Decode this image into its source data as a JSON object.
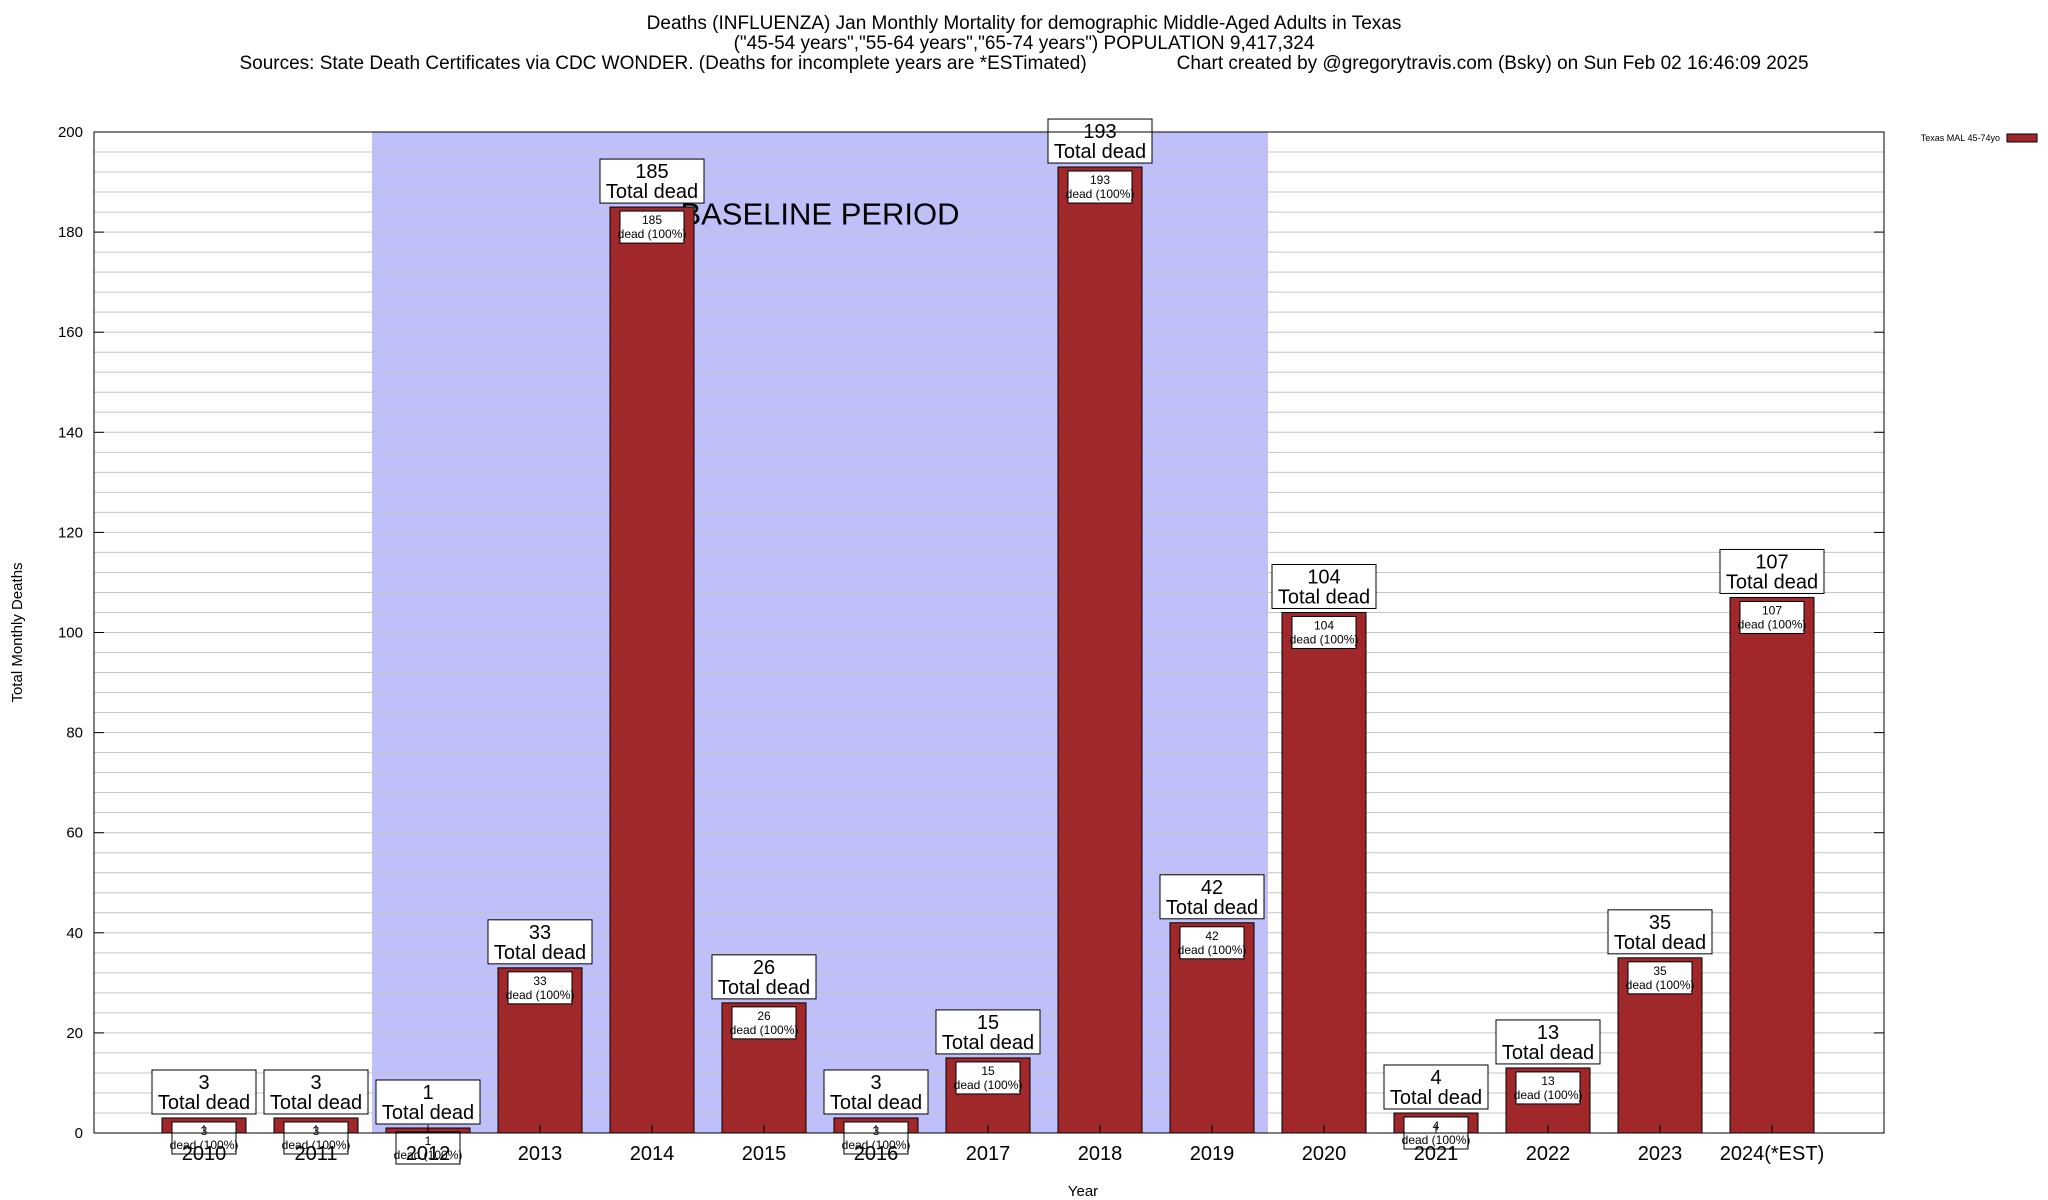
{
  "chart_data": {
    "type": "bar",
    "title": "Deaths (INFLUENZA) Jan Monthly Mortality for demographic Middle-Aged Adults in Texas",
    "subtitle": "(\"45-54 years\",\"55-64 years\",\"65-74 years\") POPULATION 9,417,324",
    "source": "Sources: State Death Certificates via CDC WONDER. (Deaths for incomplete years are *ESTimated)",
    "credit": "Chart created by @gregorytravis.com (Bsky) on Sun Feb 02 16:46:09 2025",
    "xlabel": "Year",
    "ylabel": "Total Monthly Deaths",
    "ylim": [
      0,
      200
    ],
    "yticks": [
      0,
      20,
      40,
      60,
      80,
      100,
      120,
      140,
      160,
      180,
      200
    ],
    "categories": [
      "2010",
      "2011",
      "2012",
      "2013",
      "2014",
      "2015",
      "2016",
      "2017",
      "2018",
      "2019",
      "2020",
      "2021",
      "2022",
      "2023",
      "2024(*EST)"
    ],
    "series": [
      {
        "name": "Texas MAL 45-74yo",
        "color": "#a0282a",
        "values": [
          3,
          3,
          1,
          33,
          185,
          26,
          3,
          15,
          193,
          42,
          104,
          4,
          13,
          35,
          107
        ]
      }
    ],
    "total_label": "Total dead",
    "segment_label": "dead (100%)",
    "baseline": {
      "label": "BASELINE PERIOD",
      "start": "2012",
      "end": "2019",
      "color": "#bfbff9"
    },
    "grid": true,
    "legend_position": "top-right"
  }
}
